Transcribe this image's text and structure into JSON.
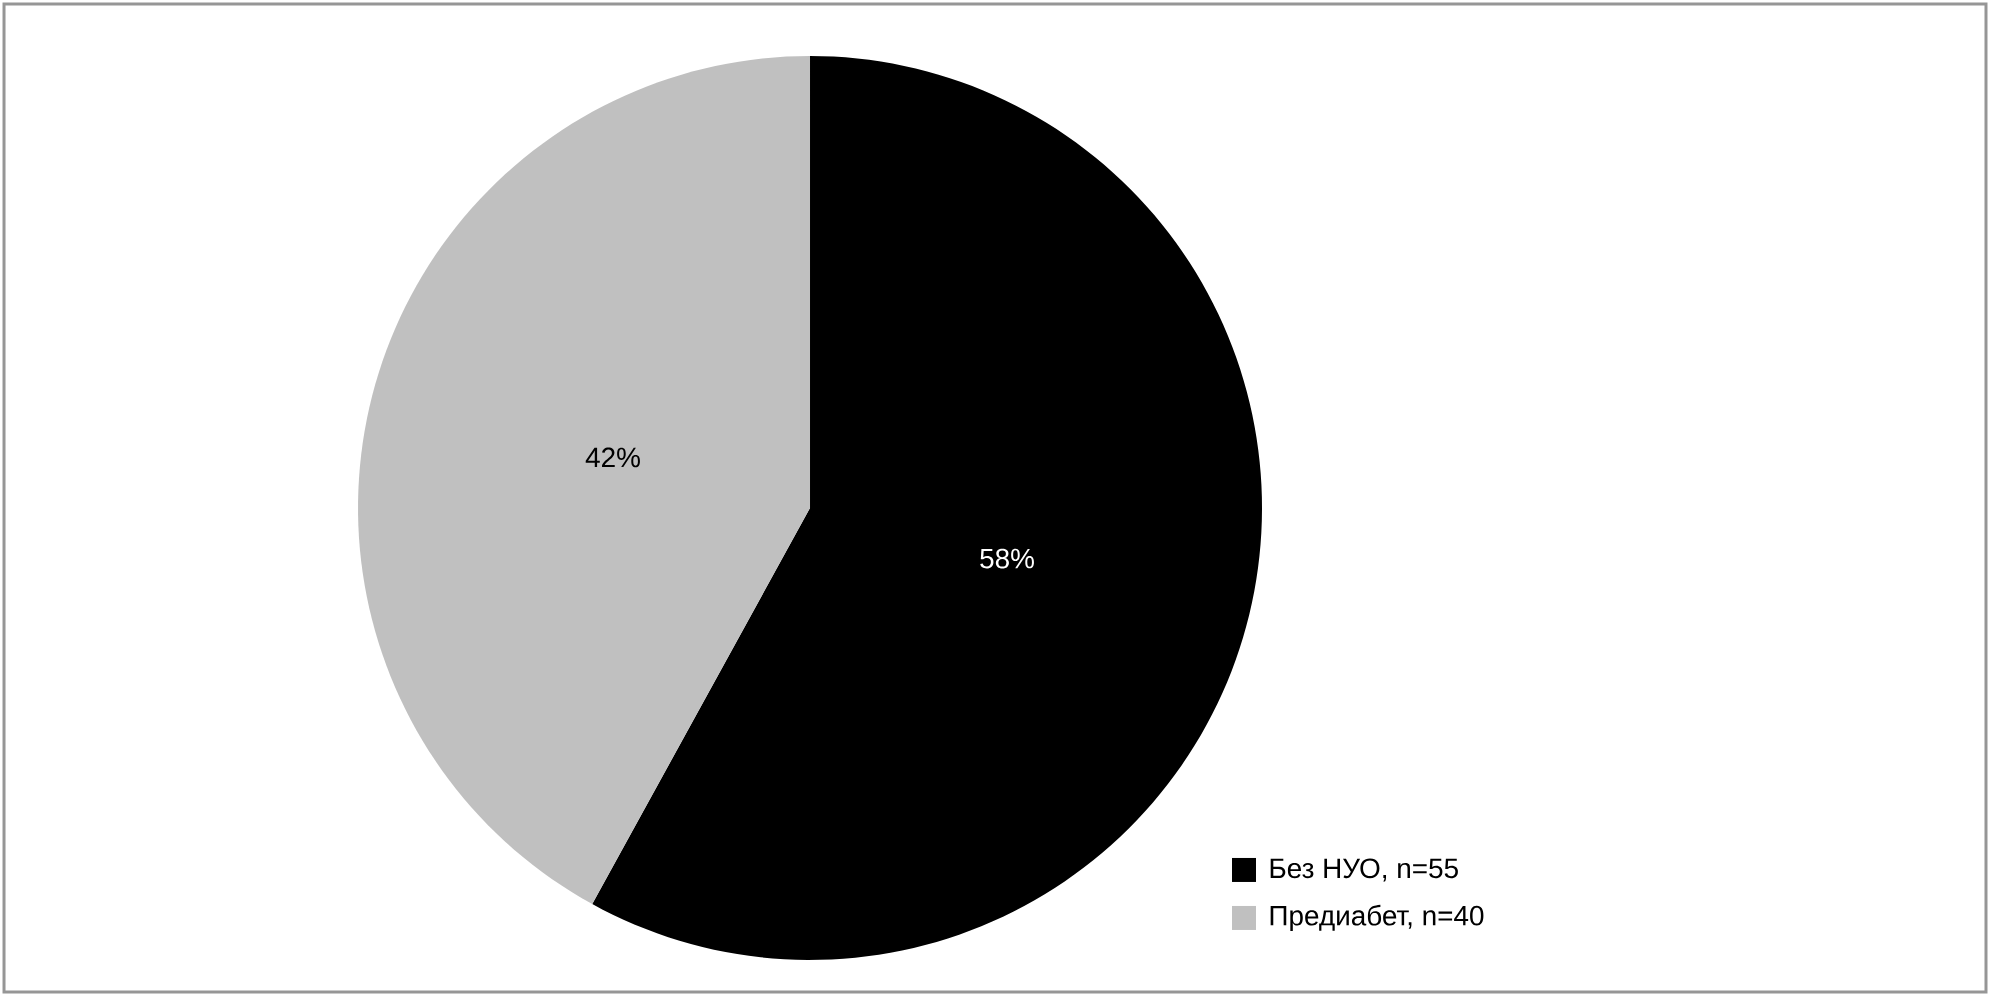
{
  "chart_data": {
    "type": "pie",
    "categories": [
      "Без НУО, n=55",
      "Предиабет, n=40"
    ],
    "values": [
      58,
      42
    ],
    "value_labels": [
      "58%",
      "42%"
    ],
    "colors": [
      "#000000",
      "#c0c0c0"
    ],
    "legend": "bottom right"
  }
}
